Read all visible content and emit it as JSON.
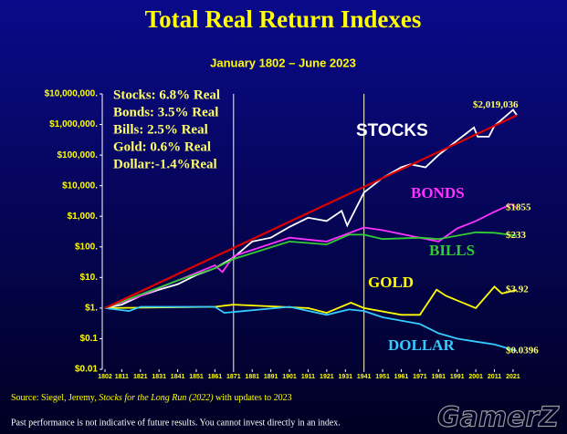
{
  "chart_data": {
    "type": "line",
    "log_scale": true,
    "title": "Total Real Return Indexes",
    "subtitle": "January 1802 – June 2023",
    "annotations": [
      "Stocks: 6.8% Real",
      "Bonds: 3.5% Real",
      "Bills:   2.5% Real",
      "Gold:   0.6% Real",
      "Dollar:-1.4%Real"
    ],
    "xlim": [
      1802,
      2023
    ],
    "xticks": [
      1802,
      1811,
      1821,
      1831,
      1841,
      1851,
      1861,
      1871,
      1881,
      1891,
      1901,
      1911,
      1921,
      1931,
      1941,
      1951,
      1961,
      1971,
      1981,
      1991,
      2001,
      2011,
      2021
    ],
    "ylim": [
      0.01,
      10000000
    ],
    "yticks": [
      {
        "value": 0.01,
        "label": "$0.01"
      },
      {
        "value": 0.1,
        "label": "$0.1"
      },
      {
        "value": 1,
        "label": "$1."
      },
      {
        "value": 10,
        "label": "$10."
      },
      {
        "value": 100,
        "label": "$100."
      },
      {
        "value": 1000,
        "label": "$1,000."
      },
      {
        "value": 10000,
        "label": "$10,000."
      },
      {
        "value": 100000,
        "label": "$100,000."
      },
      {
        "value": 1000000,
        "label": "$1,000,000."
      },
      {
        "value": 10000000,
        "label": "$10,000,000."
      }
    ],
    "vlines": [
      1871,
      1941
    ],
    "series": [
      {
        "name": "STOCKS",
        "color": "#ffffff",
        "end_label": "$2,019,036",
        "x": [
          1802,
          1811,
          1821,
          1831,
          1841,
          1851,
          1861,
          1871,
          1881,
          1891,
          1901,
          1911,
          1921,
          1929,
          1932,
          1941,
          1951,
          1961,
          1966,
          1974,
          1981,
          1991,
          2000,
          2002,
          2008,
          2011,
          2021,
          2023
        ],
        "values": [
          1,
          1.3,
          2.5,
          4,
          6,
          12,
          20,
          45,
          150,
          200,
          450,
          900,
          700,
          1500,
          500,
          6000,
          18000,
          40000,
          50000,
          40000,
          100000,
          300000,
          800000,
          400000,
          400000,
          900000,
          3000000,
          2019036
        ]
      },
      {
        "name": "BONDS",
        "color": "#ff33ff",
        "end_label": "$1855",
        "x": [
          1802,
          1821,
          1841,
          1861,
          1865,
          1871,
          1901,
          1921,
          1941,
          1951,
          1981,
          1991,
          2001,
          2011,
          2020,
          2023
        ],
        "values": [
          1,
          2.5,
          8,
          25,
          15,
          50,
          200,
          150,
          430,
          350,
          150,
          400,
          700,
          1400,
          2500,
          1855
        ]
      },
      {
        "name": "BILLS",
        "color": "#33cc33",
        "end_label": "$233",
        "x": [
          1802,
          1841,
          1861,
          1871,
          1901,
          1921,
          1933,
          1941,
          1951,
          1971,
          1981,
          2001,
          2011,
          2023
        ],
        "values": [
          1,
          8,
          20,
          40,
          150,
          120,
          250,
          250,
          180,
          200,
          180,
          300,
          290,
          233
        ]
      },
      {
        "name": "GOLD",
        "color": "#ffff00",
        "end_label": "$3.92",
        "x": [
          1802,
          1861,
          1871,
          1911,
          1921,
          1934,
          1941,
          1961,
          1971,
          1980,
          1985,
          2001,
          2011,
          2015,
          2023
        ],
        "values": [
          1,
          1.1,
          1.3,
          1,
          0.7,
          1.5,
          1,
          0.6,
          0.6,
          4,
          2.5,
          1,
          5,
          3,
          3.92
        ]
      },
      {
        "name": "DOLLAR",
        "color": "#33ccff",
        "end_label": "$0.0396",
        "x": [
          1802,
          1815,
          1821,
          1861,
          1866,
          1901,
          1921,
          1933,
          1941,
          1951,
          1971,
          1981,
          1991,
          2001,
          2011,
          2023
        ],
        "values": [
          1,
          0.8,
          1.1,
          1.1,
          0.7,
          1.1,
          0.6,
          0.9,
          0.8,
          0.5,
          0.3,
          0.15,
          0.1,
          0.08,
          0.065,
          0.0396
        ]
      }
    ],
    "trend_line": {
      "color": "#dd0000",
      "x": [
        1802,
        2023
      ],
      "values": [
        1,
        2000000
      ]
    },
    "source": {
      "prefix": "Source: Siegel, Jeremy, ",
      "book": "Stocks for the Long Run (2022)",
      "suffix": " with updates to 2023"
    },
    "footnote": "Past performance is not indicative of future results. You cannot invest directly in an index.",
    "watermark": "GamerZ"
  }
}
